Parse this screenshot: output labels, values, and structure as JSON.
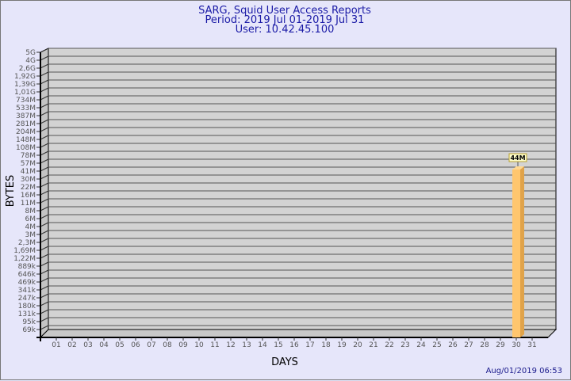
{
  "chart_data": {
    "type": "bar",
    "title": [
      "SARG, Squid User Access Reports",
      "Period: 2019 Jul 01-2019 Jul 31",
      "User: 10.42.45.100"
    ],
    "xlabel": "DAYS",
    "ylabel": "BYTES",
    "y_scale": "log",
    "y_tick_labels": [
      "5G",
      "4G",
      "2,6G",
      "1,92G",
      "1,39G",
      "1,01G",
      "734M",
      "533M",
      "387M",
      "281M",
      "204M",
      "148M",
      "108M",
      "78M",
      "57M",
      "41M",
      "30M",
      "22M",
      "16M",
      "11M",
      "8M",
      "6M",
      "4M",
      "3M",
      "2,3M",
      "1,69M",
      "1,22M",
      "889k",
      "646k",
      "469k",
      "341k",
      "247k",
      "180k",
      "131k",
      "95k",
      "69k"
    ],
    "categories": [
      "01",
      "02",
      "03",
      "04",
      "05",
      "06",
      "07",
      "08",
      "09",
      "10",
      "11",
      "12",
      "13",
      "14",
      "15",
      "16",
      "17",
      "18",
      "19",
      "20",
      "21",
      "22",
      "23",
      "24",
      "25",
      "26",
      "27",
      "28",
      "29",
      "30",
      "31"
    ],
    "values": [
      null,
      null,
      null,
      null,
      null,
      null,
      null,
      null,
      null,
      null,
      null,
      null,
      null,
      null,
      null,
      null,
      null,
      null,
      null,
      null,
      null,
      null,
      null,
      null,
      null,
      null,
      null,
      null,
      null,
      "44M",
      null
    ],
    "data_labels": {
      "30": "44M"
    },
    "grid": true,
    "colors": {
      "bar": "#ffc66e",
      "bar_side": "#e0a34a",
      "plot": "#d3d3d3",
      "background": "#e6e6fa",
      "title": "#1a1aa6"
    }
  },
  "footer": {
    "timestamp": "Aug/01/2019 06:53"
  }
}
